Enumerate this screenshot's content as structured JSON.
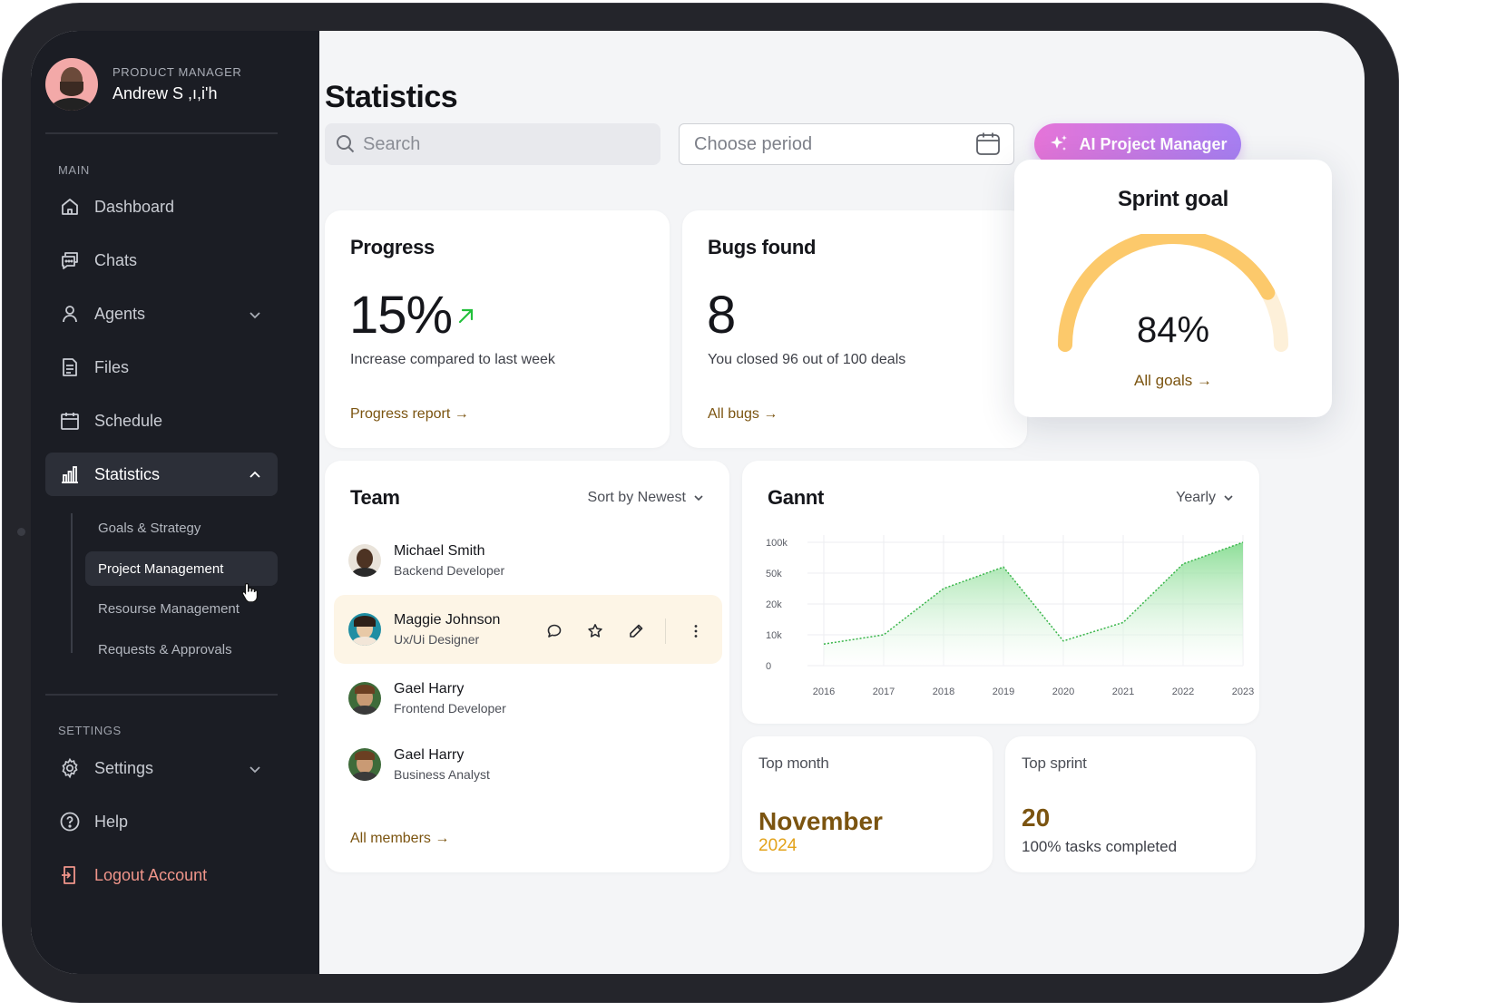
{
  "sidebar": {
    "profile": {
      "role": "PRODUCT MANAGER",
      "name": "Andrew S ,ı,i'h"
    },
    "main_label": "MAIN",
    "items": [
      {
        "label": "Dashboard"
      },
      {
        "label": "Chats"
      },
      {
        "label": "Agents"
      },
      {
        "label": "Files"
      },
      {
        "label": "Schedule"
      },
      {
        "label": "Statistics"
      }
    ],
    "sub_items": [
      {
        "label": "Goals & Strategy"
      },
      {
        "label": "Project Management"
      },
      {
        "label": "Resourse Management"
      },
      {
        "label": "Requests & Approvals"
      }
    ],
    "settings_label": "SETTINGS",
    "settings_items": [
      {
        "label": "Settings"
      },
      {
        "label": "Help"
      },
      {
        "label": "Logout Account"
      }
    ]
  },
  "header": {
    "title": "Statistics",
    "search_placeholder": "Search",
    "period_placeholder": "Choose period",
    "ai_button": "AI Project Manager"
  },
  "progress": {
    "title": "Progress",
    "value": "15%",
    "subtitle": "Increase compared to last week",
    "link": "Progress report"
  },
  "bugs": {
    "title": "Bugs found",
    "value": "8",
    "subtitle": "You closed 96 out of 100 deals",
    "link": "All bugs"
  },
  "sprint": {
    "title": "Sprint goal",
    "value": "84%",
    "fraction": 0.84,
    "link": "All goals"
  },
  "team": {
    "title": "Team",
    "sort": "Sort by Newest",
    "members": [
      {
        "name": "Michael Smith",
        "role": "Backend Developer"
      },
      {
        "name": "Maggie Johnson",
        "role": "Ux/Ui Designer"
      },
      {
        "name": "Gael Harry",
        "role": "Frontend Developer"
      },
      {
        "name": "Gael Harry",
        "role": "Business Analyst"
      }
    ],
    "link": "All members"
  },
  "gannt": {
    "title": "Gannt",
    "range": "Yearly"
  },
  "chart_data": {
    "type": "area",
    "x": [
      "2016",
      "2017",
      "2018",
      "2019",
      "2020",
      "2021",
      "2022",
      "2023"
    ],
    "y_ticks": [
      "100k",
      "50k",
      "20k",
      "10k",
      "0"
    ],
    "series": [
      {
        "values_tick_index": [
          0.7,
          1.0,
          2.5,
          3.2,
          0.8,
          1.4,
          3.3,
          4.0
        ]
      }
    ],
    "colors": {
      "line": "#39b54a",
      "fill": "#7fd88a"
    }
  },
  "top_month": {
    "label": "Top month",
    "value": "November",
    "year": "2024"
  },
  "top_sprint": {
    "label": "Top sprint",
    "value": "20",
    "sub": "100% tasks completed"
  },
  "colors": {
    "accent": "#7b5410",
    "sidebar": "#1b1d24",
    "gauge": "#fcc96b"
  }
}
